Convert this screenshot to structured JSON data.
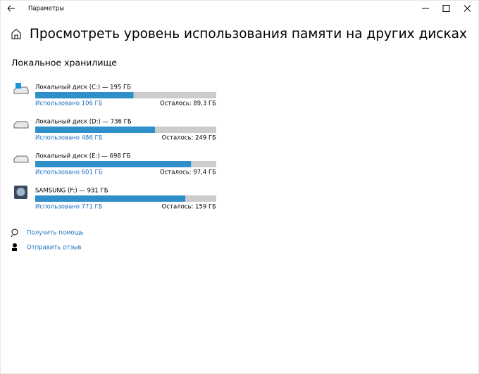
{
  "window": {
    "title": "Параметры"
  },
  "header": {
    "title": "Просмотреть уровень использования памяти на других дисках"
  },
  "section": {
    "title": "Локальное хранилище"
  },
  "drives": [
    {
      "name": "Локальный диск (C:) — 195 ГБ",
      "used": 106,
      "used_label": "Использовано 106 ГБ",
      "free": 89.3,
      "free_label": "Осталось: 89,3 ГБ"
    },
    {
      "name": "Локальный диск (D:) — 736 ГБ",
      "used": 486,
      "used_label": "Использовано 486 ГБ",
      "free": 249,
      "free_label": "Осталось: 249 ГБ"
    },
    {
      "name": "Локальный диск (E:) — 698 ГБ",
      "used": 601,
      "used_label": "Использовано 601 ГБ",
      "free": 97.4,
      "free_label": "Осталось: 97,4 ГБ"
    },
    {
      "name": "SAMSUNG (F:) — 931 ГБ",
      "used": 771,
      "used_label": "Использовано 771 ГБ",
      "free": 159,
      "free_label": "Осталось: 159 ГБ"
    }
  ],
  "links": [
    "Получить помощь",
    "Отправить отзыв"
  ]
}
